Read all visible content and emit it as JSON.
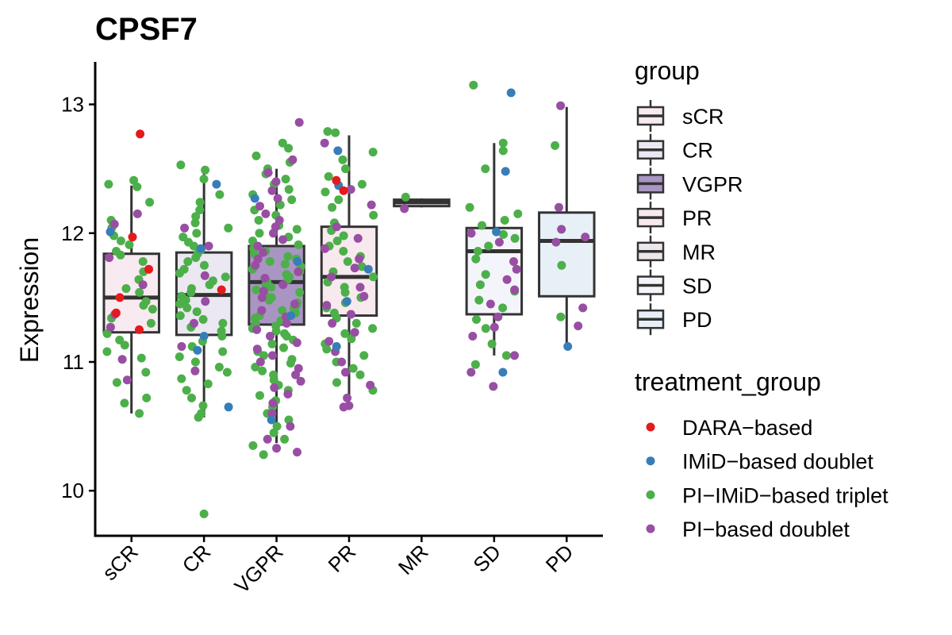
{
  "chart_data": {
    "type": "box",
    "title": "CPSF7",
    "xlabel": "",
    "ylabel": "Expression",
    "ylim": [
      9.65,
      13.33
    ],
    "yticks": [
      "10",
      "11",
      "12",
      "13"
    ],
    "categories": [
      "sCR",
      "CR",
      "VGPR",
      "PR",
      "MR",
      "SD",
      "PD"
    ],
    "boxes": [
      {
        "group": "sCR",
        "min": 10.6,
        "q1": 11.23,
        "median": 11.5,
        "q3": 11.84,
        "max": 12.37,
        "fill": "#f7eaf0"
      },
      {
        "group": "CR",
        "min": 10.57,
        "q1": 11.21,
        "median": 11.52,
        "q3": 11.85,
        "max": 12.52,
        "fill": "#ebe8f2"
      },
      {
        "group": "VGPR",
        "min": 10.37,
        "q1": 11.29,
        "median": 11.62,
        "q3": 11.9,
        "max": 12.5,
        "fill": "#a995c2"
      },
      {
        "group": "PR",
        "min": 10.72,
        "q1": 11.36,
        "median": 11.66,
        "q3": 12.05,
        "max": 12.76,
        "fill": "#f8e9ef"
      },
      {
        "group": "MR",
        "min": 12.2,
        "q1": 12.21,
        "median": 12.24,
        "q3": 12.26,
        "max": 12.27,
        "fill": "#ede7ec"
      },
      {
        "group": "SD",
        "min": 11.05,
        "q1": 11.37,
        "median": 11.86,
        "q3": 12.04,
        "max": 12.7,
        "fill": "#f4f5fa"
      },
      {
        "group": "PD",
        "min": 11.12,
        "q1": 11.51,
        "median": 11.94,
        "q3": 12.16,
        "max": 12.98,
        "fill": "#e8f0f7"
      }
    ],
    "outliers": [
      {
        "group": "CR",
        "value": 9.82,
        "treatment": "PI-IMiD-based triplet"
      }
    ],
    "points": [
      {
        "group": "sCR",
        "treatment": "DARA-based",
        "values": [
          12.77,
          11.97,
          11.72,
          11.5,
          11.38,
          11.25
        ]
      },
      {
        "group": "sCR",
        "treatment": "IMiD-based doublet",
        "values": [
          12.01
        ]
      },
      {
        "group": "sCR",
        "treatment": "PI-based doublet",
        "values": [
          12.15,
          12.07,
          11.81,
          11.6,
          11.37,
          11.27,
          11.02,
          10.86
        ]
      },
      {
        "group": "sCR",
        "treatment": "PI-IMiD-based triplet",
        "values": [
          12.41,
          12.38,
          12.36,
          12.24,
          12.1,
          12.04,
          11.98,
          11.94,
          11.91,
          11.86,
          11.83,
          11.78,
          11.7,
          11.64,
          11.57,
          11.54,
          11.47,
          11.44,
          11.41,
          11.34,
          11.3,
          11.22,
          11.17,
          11.13,
          11.08,
          11.03,
          10.92,
          10.84,
          10.72,
          10.68,
          10.6
        ]
      },
      {
        "group": "CR",
        "treatment": "DARA-based",
        "values": [
          11.56
        ]
      },
      {
        "group": "CR",
        "treatment": "IMiD-based doublet",
        "values": [
          12.38,
          11.88,
          11.2,
          11.09,
          10.65
        ]
      },
      {
        "group": "CR",
        "treatment": "PI-based doublet",
        "values": [
          12.04,
          11.9,
          11.67,
          11.47,
          11.3,
          11.12,
          10.93
        ]
      },
      {
        "group": "CR",
        "treatment": "PI-IMiD-based triplet",
        "values": [
          12.53,
          12.49,
          12.42,
          12.3,
          12.24,
          12.18,
          12.13,
          12.08,
          12.04,
          12.0,
          11.97,
          11.93,
          11.9,
          11.87,
          11.84,
          11.81,
          11.78,
          11.75,
          11.72,
          11.69,
          11.66,
          11.63,
          11.6,
          11.57,
          11.54,
          11.51,
          11.48,
          11.45,
          11.42,
          11.39,
          11.36,
          11.33,
          11.3,
          11.27,
          11.24,
          11.2,
          11.16,
          11.12,
          11.08,
          11.04,
          11.0,
          10.96,
          10.92,
          10.87,
          10.83,
          10.78,
          10.72,
          10.66,
          10.6,
          10.57
        ]
      },
      {
        "group": "VGPR",
        "treatment": "IMiD-based doublet",
        "values": [
          12.27,
          11.78,
          11.36,
          10.55
        ]
      },
      {
        "group": "VGPR",
        "treatment": "PI-based doublet",
        "values": [
          12.86,
          12.57,
          12.47,
          12.4,
          12.33,
          12.27,
          12.21,
          12.15,
          12.1,
          12.05,
          12.0,
          11.95,
          11.9,
          11.85,
          11.8,
          11.75,
          11.7,
          11.65,
          11.6,
          11.55,
          11.5,
          11.45,
          11.4,
          11.35,
          11.3,
          11.25,
          11.2,
          11.15,
          11.1,
          11.05,
          11.0,
          10.95,
          10.9,
          10.85,
          10.8,
          10.75,
          10.68,
          10.6,
          10.5,
          10.4,
          10.33,
          10.3
        ]
      },
      {
        "group": "VGPR",
        "treatment": "PI-IMiD-based triplet",
        "values": [
          12.7,
          12.66,
          12.6,
          12.55,
          12.5,
          12.46,
          12.42,
          12.38,
          12.34,
          12.3,
          12.26,
          12.22,
          12.18,
          12.14,
          12.1,
          12.06,
          12.03,
          12.0,
          11.97,
          11.94,
          11.91,
          11.88,
          11.86,
          11.84,
          11.82,
          11.8,
          11.78,
          11.76,
          11.74,
          11.72,
          11.7,
          11.68,
          11.66,
          11.64,
          11.62,
          11.6,
          11.58,
          11.56,
          11.54,
          11.52,
          11.5,
          11.48,
          11.46,
          11.44,
          11.42,
          11.4,
          11.38,
          11.36,
          11.34,
          11.32,
          11.3,
          11.28,
          11.26,
          11.24,
          11.22,
          11.2,
          11.17,
          11.14,
          11.11,
          11.08,
          11.05,
          11.02,
          10.99,
          10.96,
          10.93,
          10.9,
          10.86,
          10.82,
          10.78,
          10.74,
          10.7,
          10.65,
          10.6,
          10.55,
          10.5,
          10.45,
          10.4,
          10.35,
          10.28
        ]
      },
      {
        "group": "PR",
        "treatment": "DARA-based",
        "values": [
          12.41,
          12.33
        ]
      },
      {
        "group": "PR",
        "treatment": "IMiD-based doublet",
        "values": [
          12.64,
          12.37,
          11.72,
          11.47,
          11.12
        ]
      },
      {
        "group": "PR",
        "treatment": "PI-based doublet",
        "values": [
          12.7,
          12.34,
          12.22,
          12.05,
          11.96,
          11.88,
          11.8,
          11.73,
          11.66,
          11.58,
          11.51,
          11.44,
          11.37,
          11.3,
          11.23,
          11.16,
          11.08,
          11.0,
          10.92,
          10.82,
          10.72,
          10.66,
          10.65
        ]
      },
      {
        "group": "PR",
        "treatment": "PI-IMiD-based triplet",
        "values": [
          12.79,
          12.78,
          12.63,
          12.57,
          12.5,
          12.44,
          12.38,
          12.32,
          12.26,
          12.2,
          12.14,
          12.08,
          12.02,
          11.98,
          11.94,
          11.9,
          11.86,
          11.82,
          11.78,
          11.74,
          11.7,
          11.66,
          11.62,
          11.58,
          11.54,
          11.5,
          11.46,
          11.42,
          11.38,
          11.34,
          11.3,
          11.26,
          11.22,
          11.18,
          11.14,
          11.1,
          11.05,
          11.0,
          10.95,
          10.9,
          10.84,
          10.78
        ]
      },
      {
        "group": "MR",
        "treatment": "PI-based doublet",
        "values": [
          12.19
        ]
      },
      {
        "group": "MR",
        "treatment": "PI-IMiD-based triplet",
        "values": [
          12.28
        ]
      },
      {
        "group": "SD",
        "treatment": "IMiD-based doublet",
        "values": [
          13.09,
          12.48,
          12.01,
          10.92
        ]
      },
      {
        "group": "SD",
        "treatment": "PI-based doublet",
        "values": [
          12.0,
          11.93,
          11.78,
          11.72,
          11.64,
          11.56,
          11.45,
          11.35,
          11.27,
          11.2,
          11.05,
          10.92,
          10.81
        ]
      },
      {
        "group": "SD",
        "treatment": "PI-IMiD-based triplet",
        "values": [
          13.15,
          12.7,
          12.64,
          12.5,
          12.2,
          12.15,
          12.1,
          12.06,
          11.99,
          11.96,
          11.9,
          11.86,
          11.8,
          11.68,
          11.6,
          11.55,
          11.48,
          11.42,
          11.33,
          11.26,
          11.14,
          11.05,
          10.98
        ]
      },
      {
        "group": "PD",
        "treatment": "IMiD-based doublet",
        "values": [
          11.12
        ]
      },
      {
        "group": "PD",
        "treatment": "PI-based doublet",
        "values": [
          12.99,
          12.2,
          12.03,
          11.97,
          11.93,
          11.42,
          11.28
        ]
      },
      {
        "group": "PD",
        "treatment": "PI-IMiD-based triplet",
        "values": [
          12.68,
          11.75,
          11.35
        ]
      }
    ],
    "legend_group": {
      "title": "group",
      "items": [
        {
          "label": "sCR",
          "fill": "#f7eaf0"
        },
        {
          "label": "CR",
          "fill": "#ebe8f2"
        },
        {
          "label": "VGPR",
          "fill": "#a995c2"
        },
        {
          "label": "PR",
          "fill": "#f8e9ef"
        },
        {
          "label": "MR",
          "fill": "#ede7ec"
        },
        {
          "label": "SD",
          "fill": "#f4f5fa"
        },
        {
          "label": "PD",
          "fill": "#e8f0f7"
        }
      ]
    },
    "legend_treatment": {
      "title": "treatment_group",
      "items": [
        {
          "label": "DARA−based",
          "color": "#e41a1c"
        },
        {
          "label": "IMiD−based doublet",
          "color": "#377eb8"
        },
        {
          "label": "PI−IMiD−based triplet",
          "color": "#4daf4a"
        },
        {
          "label": "PI−based doublet",
          "color": "#984ea3"
        }
      ]
    },
    "legend_position": "right",
    "grid": false
  }
}
